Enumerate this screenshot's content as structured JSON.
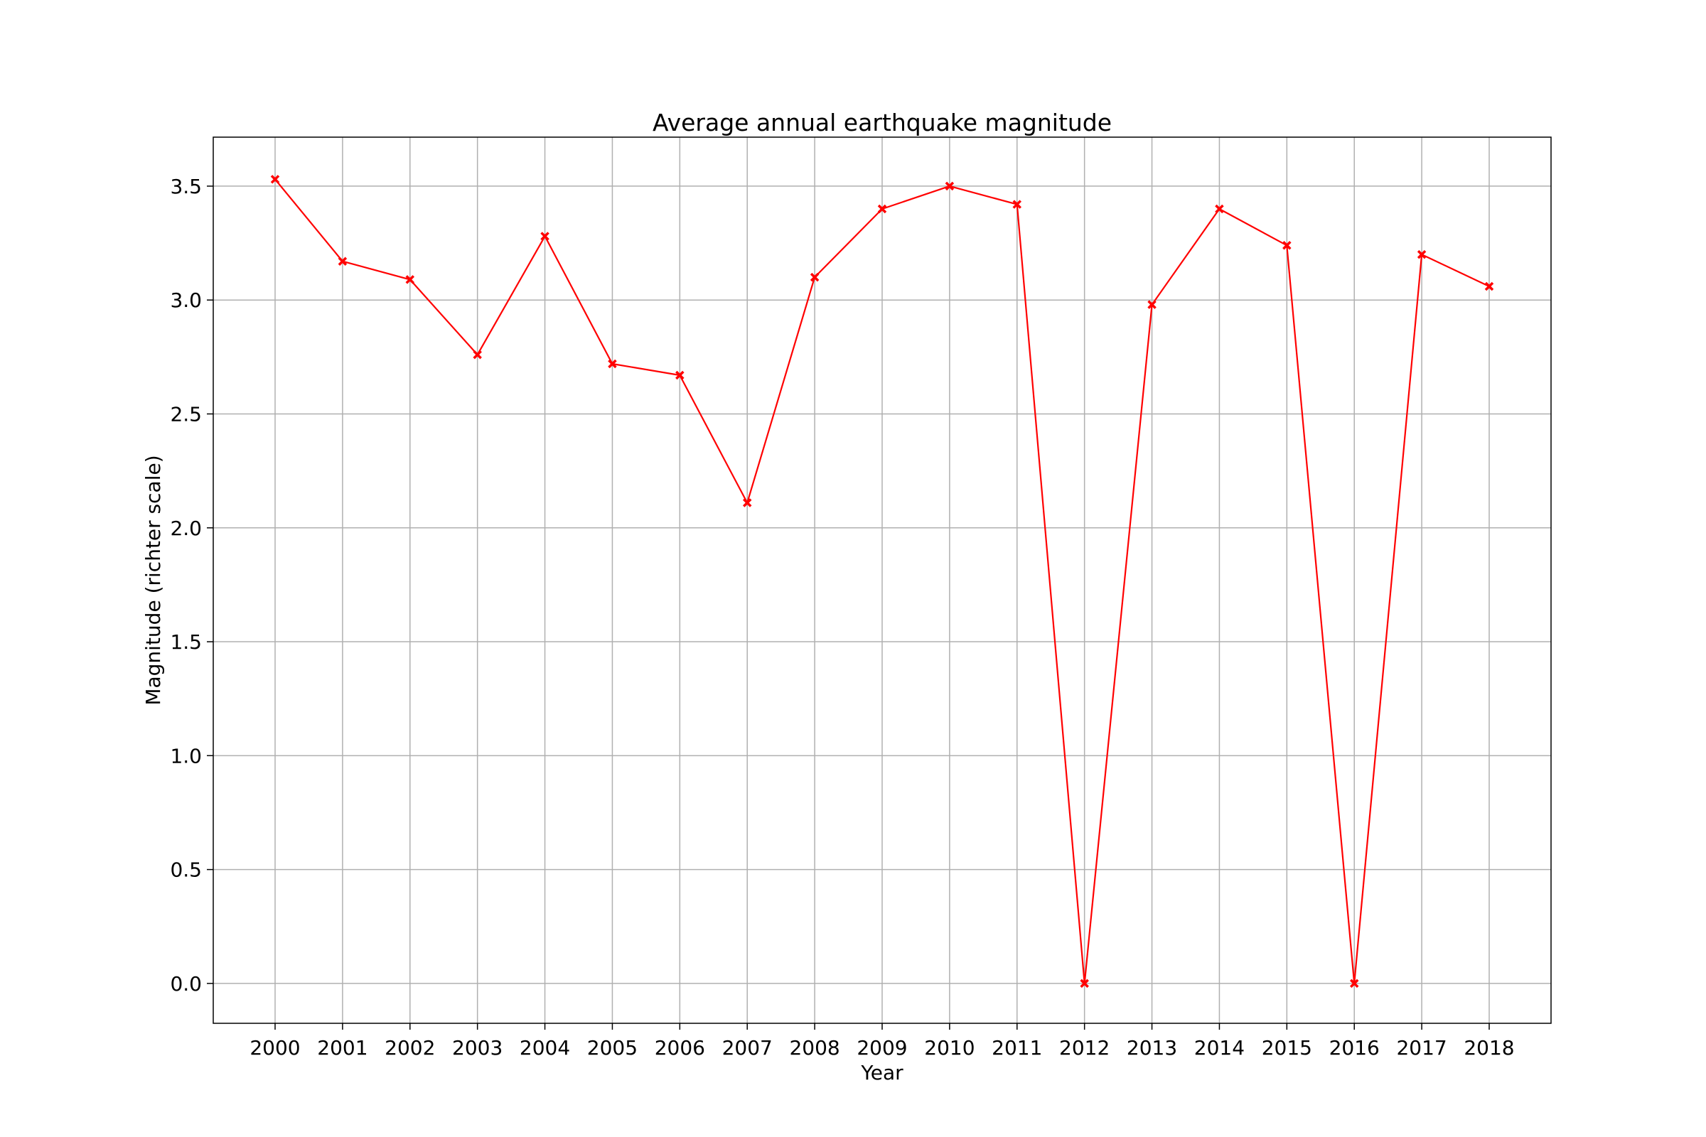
{
  "chart_data": {
    "type": "line",
    "title": "Average annual earthquake magnitude",
    "xlabel": "Year",
    "ylabel": "Magnitude (richter scale)",
    "x": [
      "2000",
      "2001",
      "2002",
      "2003",
      "2004",
      "2005",
      "2006",
      "2007",
      "2008",
      "2009",
      "2010",
      "2011",
      "2012",
      "2013",
      "2014",
      "2015",
      "2016",
      "2017",
      "2018"
    ],
    "series": [
      {
        "values": [
          3.53,
          3.17,
          3.09,
          2.76,
          3.28,
          2.72,
          2.67,
          2.11,
          3.1,
          3.4,
          3.5,
          3.42,
          0.0,
          2.98,
          3.4,
          3.24,
          0.0,
          3.2,
          3.06
        ],
        "color": "#ff0000",
        "marker": "x"
      }
    ],
    "ylim": [
      -0.175,
      3.715
    ],
    "yticks": [
      "0.0",
      "0.5",
      "1.0",
      "1.5",
      "2.0",
      "2.5",
      "3.0",
      "3.5"
    ],
    "grid": true,
    "legend": "none"
  }
}
